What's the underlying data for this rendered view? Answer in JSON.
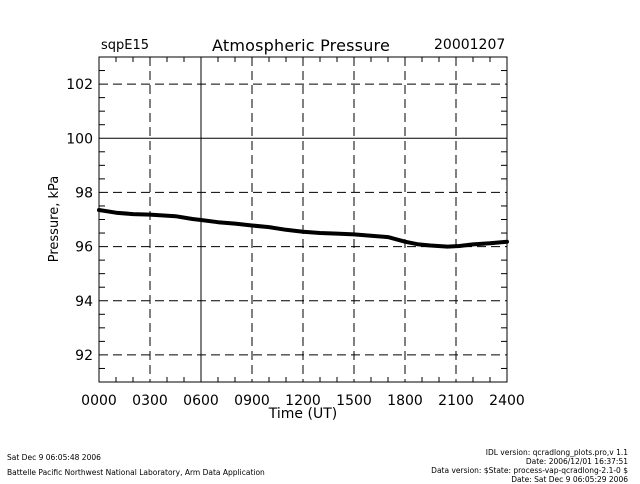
{
  "header": {
    "station": "sqpE15",
    "title": "Atmospheric Pressure",
    "date": "20001207"
  },
  "footer": {
    "timestamp": "Sat Dec  9 06:05:48 2006",
    "organization": "Battelle Pacific Northwest National Laboratory, Arm Data Application",
    "idl_version": "IDL version: qcradlong_plots.pro,v 1.1",
    "idl_date": "Date: 2006/12/01 16:37:51",
    "data_version": "Data version: $State: process-vap-qcradlong-2.1-0 $",
    "data_date": "Date: Sat Dec  9 06:05:29 2006"
  },
  "chart_data": {
    "type": "line",
    "title": "Atmospheric Pressure",
    "xlabel": "Time (UT)",
    "ylabel": "Pressure, kPa",
    "xlim": [
      0,
      24
    ],
    "ylim": [
      91,
      103
    ],
    "x_tick_labels": [
      "0000",
      "0300",
      "0600",
      "0900",
      "1200",
      "1500",
      "1800",
      "2100",
      "2400"
    ],
    "y_tick_values": [
      92,
      94,
      96,
      98,
      100,
      102
    ],
    "grid": "dashed",
    "series": [
      {
        "name": "Pressure",
        "x": [
          0,
          1,
          2,
          3,
          4.5,
          5.5,
          6,
          7,
          8,
          9,
          10,
          11,
          12,
          13,
          14,
          15,
          16,
          17,
          18,
          18.8,
          19.5,
          20.5,
          21.2,
          22,
          23,
          24
        ],
        "y": [
          97.35,
          97.25,
          97.2,
          97.18,
          97.12,
          97.02,
          96.98,
          96.9,
          96.85,
          96.78,
          96.72,
          96.62,
          96.55,
          96.5,
          96.48,
          96.45,
          96.4,
          96.35,
          96.18,
          96.08,
          96.04,
          96.0,
          96.02,
          96.08,
          96.12,
          96.18
        ]
      }
    ]
  }
}
